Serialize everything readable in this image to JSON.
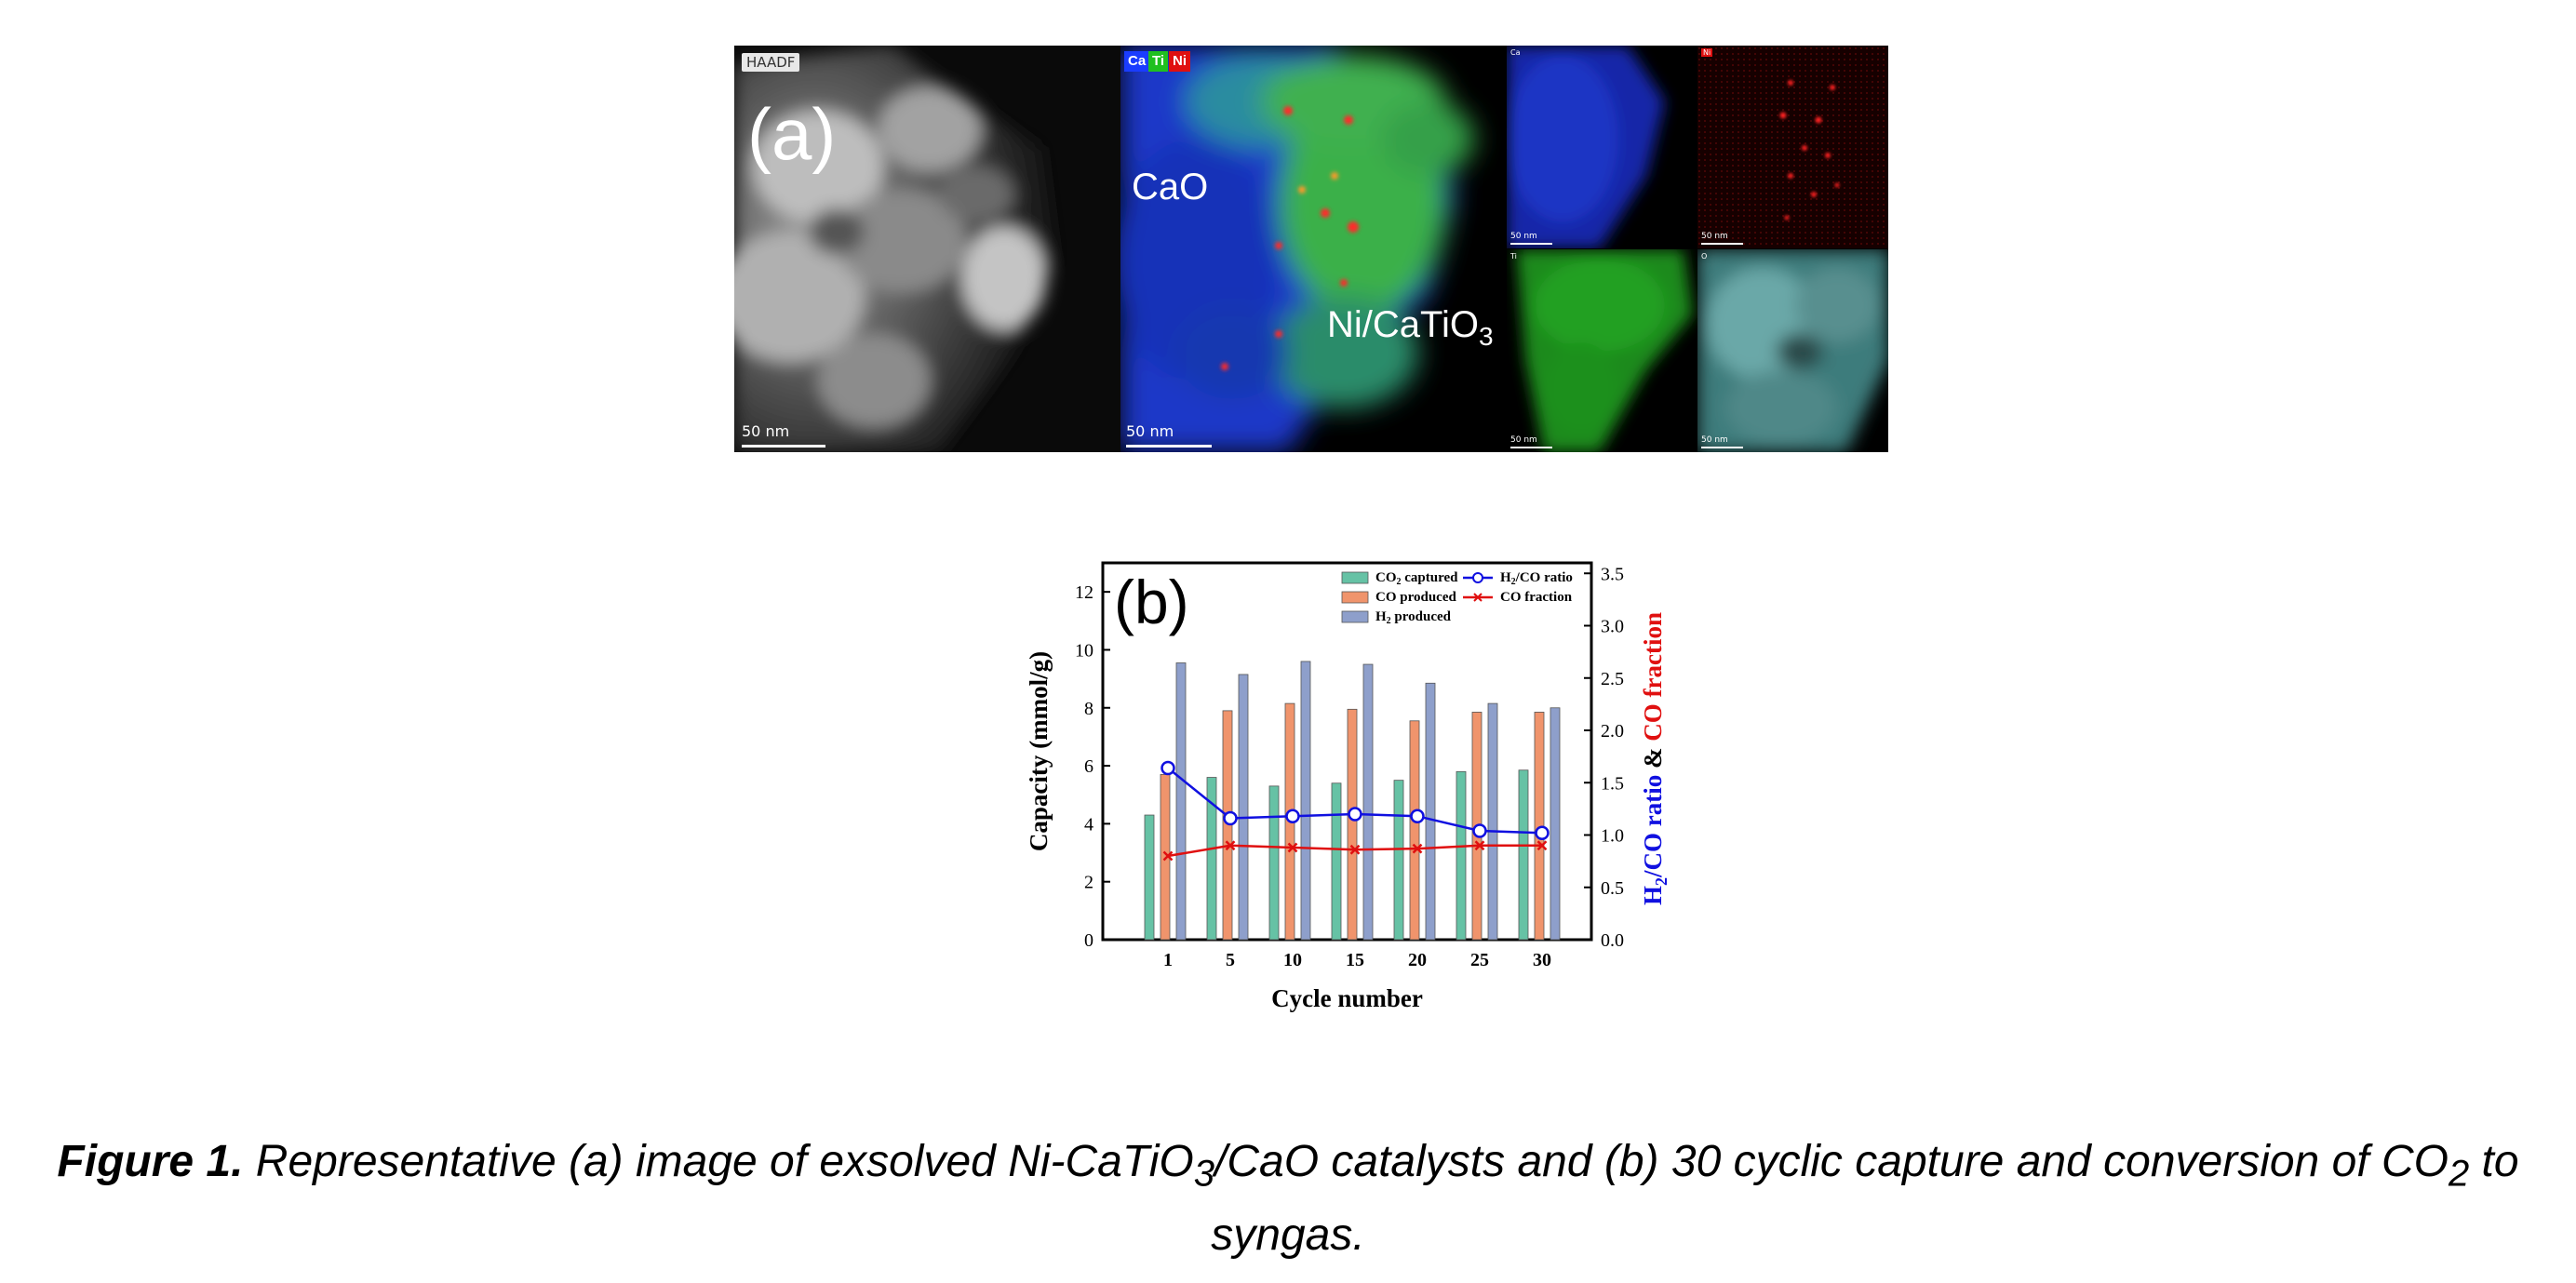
{
  "panel_a": {
    "letter": "(a)",
    "haadf_tag": "HAADF",
    "scale_main": "50 nm",
    "scale_overlay": "50 nm",
    "scale_small": "50 nm",
    "legend": [
      "Ca",
      "Ti",
      "Ni"
    ],
    "legend_colors": [
      "#1a3cff",
      "#20c020",
      "#e01010"
    ],
    "label_cao": "CaO",
    "label_ni_cat_prefix": "Ni/CaTiO",
    "label_ni_cat_sub": "3",
    "tag_ca": "Ca",
    "tag_ni": "Ni",
    "tag_ti": "Ti",
    "tag_o": "O"
  },
  "chart_data": {
    "type": "bar",
    "panel_letter": "(b)",
    "categories": [
      "1",
      "5",
      "10",
      "15",
      "20",
      "25",
      "30"
    ],
    "xlabel": "Cycle number",
    "ylabel": "Capacity (mmol/g)",
    "ylim": [
      0,
      13
    ],
    "yticks": [
      "0",
      "2",
      "4",
      "6",
      "8",
      "10",
      "12"
    ],
    "y2label_part1_prefix": "H",
    "y2label_part1_sub": "2",
    "y2label_part1_suffix": "/CO ratio",
    "y2label_part2": " & ",
    "y2label_part3": "CO fraction",
    "y2lim": [
      0,
      3.6
    ],
    "y2ticks": [
      "0.0",
      "0.5",
      "1.0",
      "1.5",
      "2.0",
      "2.5",
      "3.0",
      "3.5"
    ],
    "series": [
      {
        "name": "CO2 captured",
        "legend_prefix": "CO",
        "legend_sub": "2",
        "legend_suffix": " captured",
        "color": "#66c2a5",
        "values": [
          4.3,
          5.6,
          5.3,
          5.4,
          5.5,
          5.8,
          5.85
        ]
      },
      {
        "name": "CO produced",
        "legend_prefix": "CO produced",
        "legend_sub": "",
        "legend_suffix": "",
        "color": "#f0946c",
        "values": [
          5.7,
          7.9,
          8.15,
          7.95,
          7.55,
          7.85,
          7.85
        ]
      },
      {
        "name": "H2 produced",
        "legend_prefix": "H",
        "legend_sub": "2",
        "legend_suffix": " produced",
        "color": "#8e9fcb",
        "values": [
          9.55,
          9.15,
          9.6,
          9.5,
          8.85,
          8.15,
          8.0
        ]
      }
    ],
    "line_series": [
      {
        "name": "H2/CO ratio",
        "legend_prefix": "H",
        "legend_sub": "2",
        "legend_suffix": "/CO ratio",
        "color": "#1010e0",
        "axis": "right",
        "values": [
          1.64,
          1.16,
          1.18,
          1.2,
          1.18,
          1.04,
          1.02
        ]
      },
      {
        "name": "CO fraction",
        "legend_prefix": "CO fraction",
        "legend_sub": "",
        "legend_suffix": "",
        "color": "#e01010",
        "axis": "right",
        "values": [
          0.8,
          0.9,
          0.88,
          0.86,
          0.87,
          0.9,
          0.9
        ]
      }
    ],
    "legend_position": "top-right"
  },
  "caption": {
    "label": "Figure 1.",
    "text1": " Representative (a) image of exsolved Ni-CaTiO",
    "sub1": "3",
    "text2": "/CaO catalysts and (b) 30 cyclic capture and conversion of CO",
    "sub2": "2",
    "text3": " to syngas."
  }
}
